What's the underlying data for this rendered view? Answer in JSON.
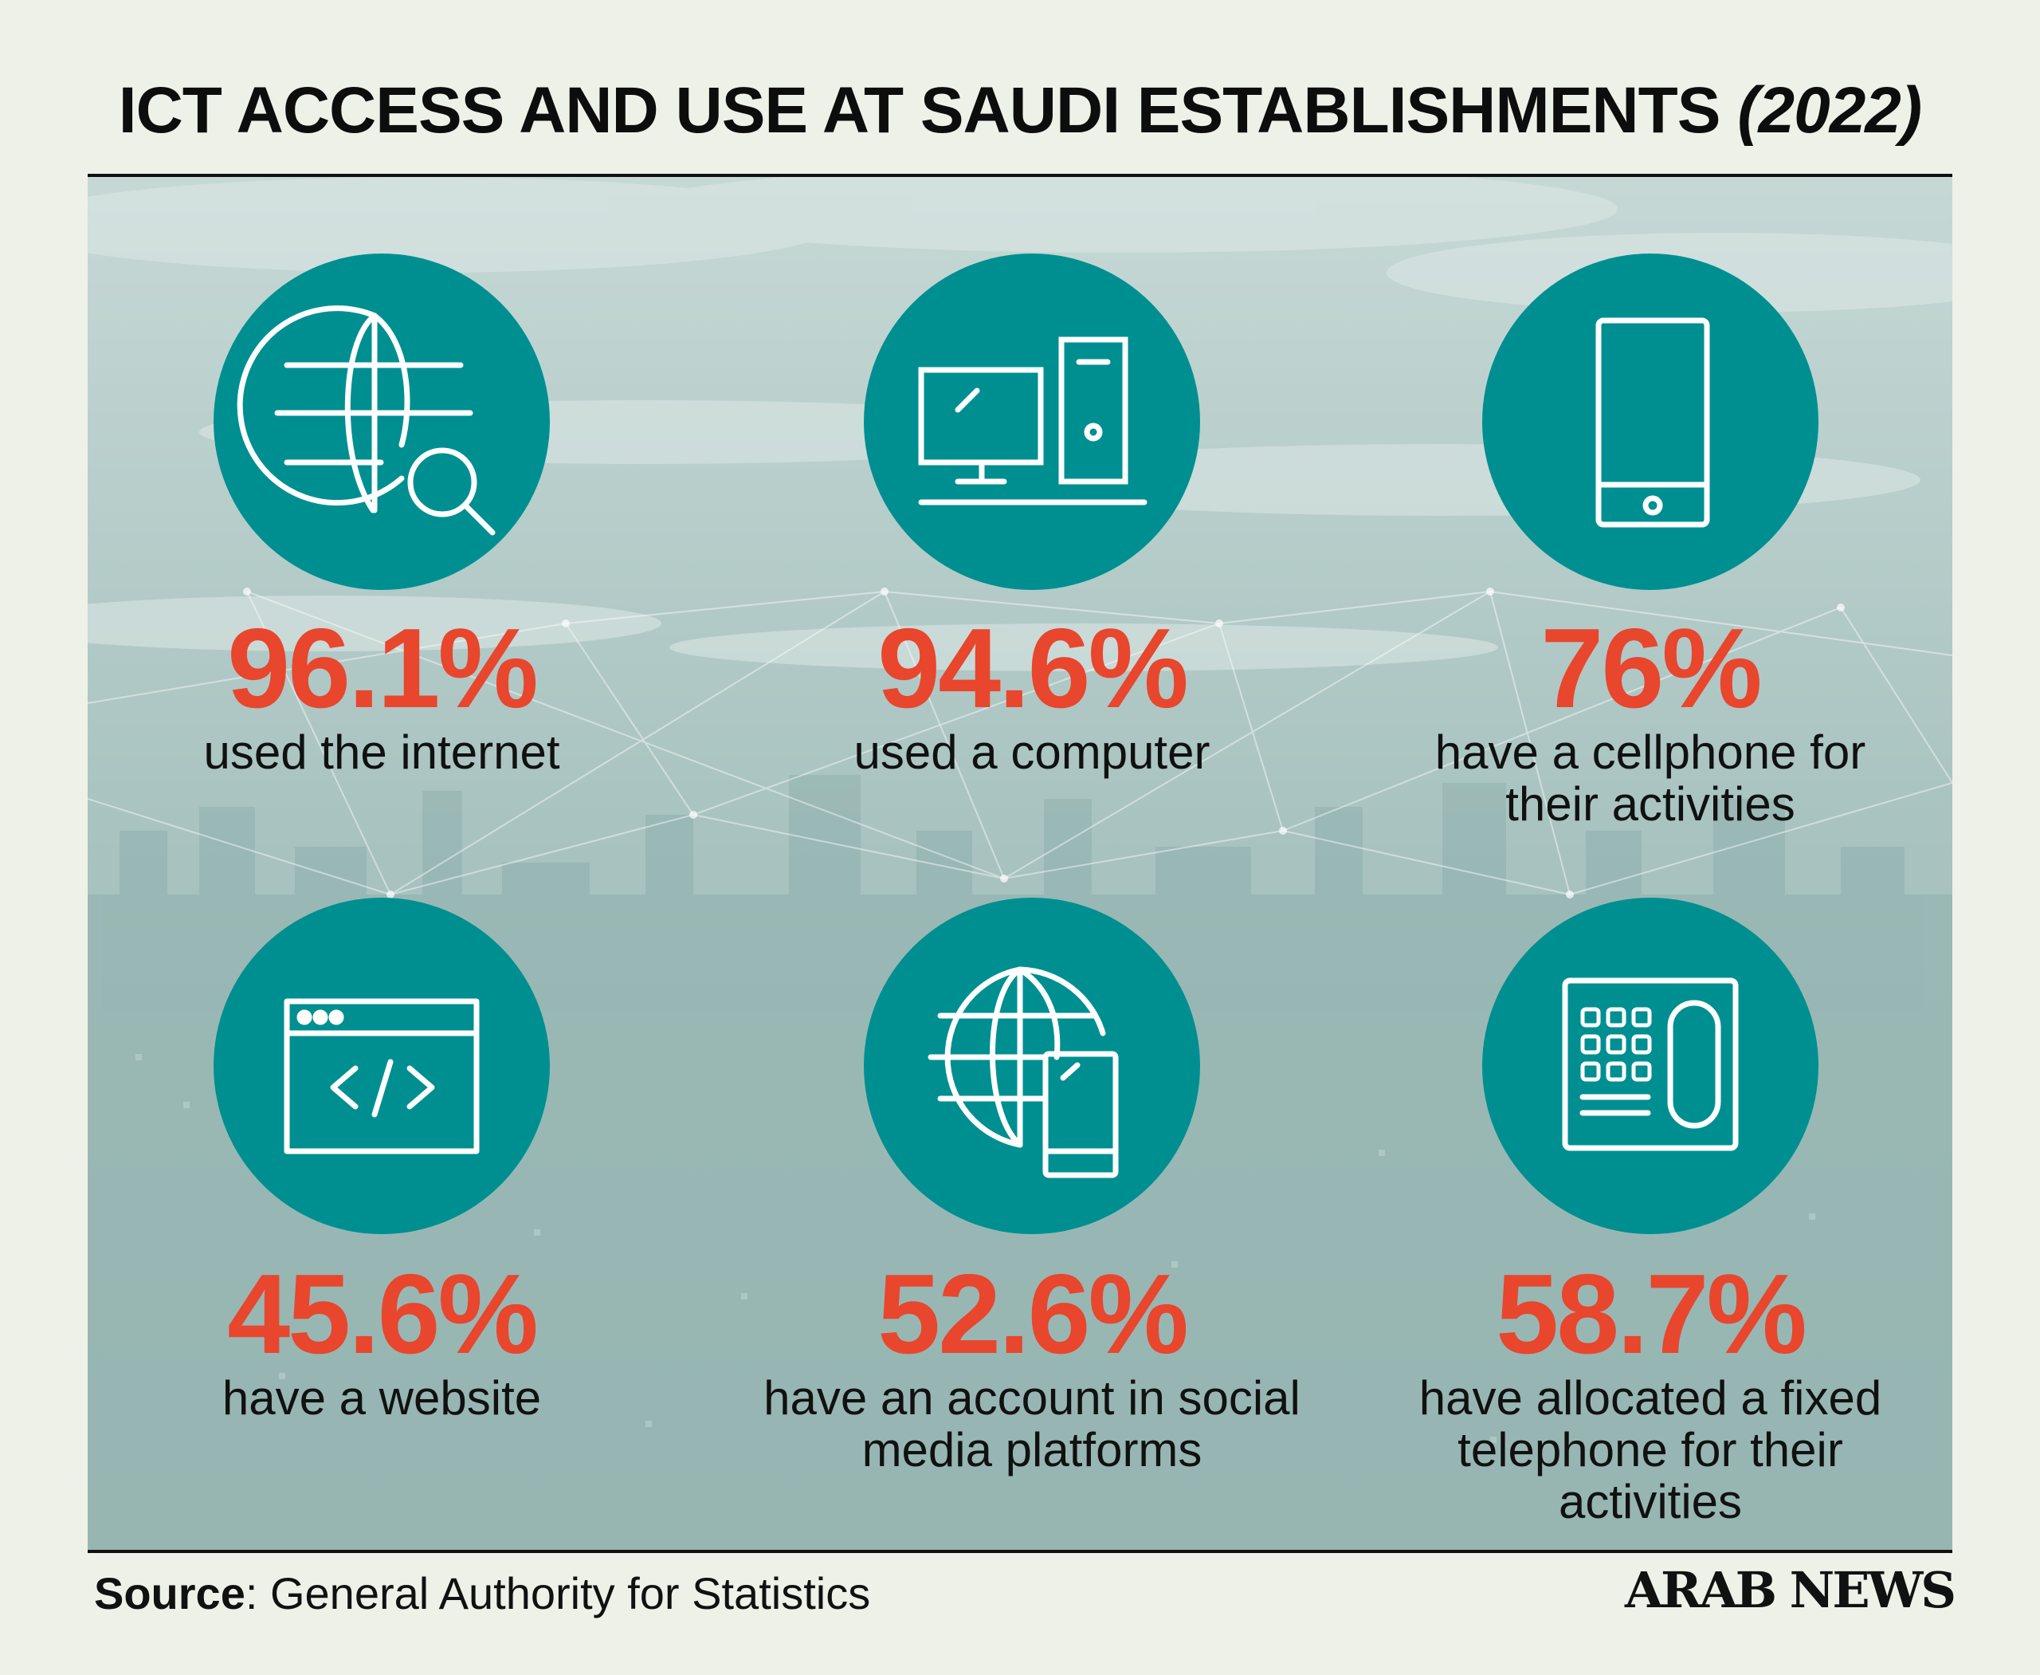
{
  "header": {
    "title": "ICT ACCESS AND USE AT SAUDI ESTABLISHMENTS",
    "year": "(2022)"
  },
  "stats": [
    {
      "icon": "globe-search-icon",
      "value": "96.1%",
      "caption": "used the internet"
    },
    {
      "icon": "desktop-computer-icon",
      "value": "94.6%",
      "caption": "used a computer"
    },
    {
      "icon": "cellphone-icon",
      "value": "76%",
      "caption": "have a cellphone for their activities"
    },
    {
      "icon": "website-code-icon",
      "value": "45.6%",
      "caption": "have a website"
    },
    {
      "icon": "globe-phone-icon",
      "value": "52.6%",
      "caption": "have an account in social media platforms"
    },
    {
      "icon": "fixed-telephone-icon",
      "value": "58.7%",
      "caption": "have allocated a fixed telephone for their activities"
    }
  ],
  "footer": {
    "source_label": "Source",
    "source_text": ": General Authority for Statistics",
    "brand": "ARAB NEWS"
  },
  "colors": {
    "circle": "#008f91",
    "value": "#e8462d",
    "text": "#111111",
    "background": "#eef1e8"
  }
}
